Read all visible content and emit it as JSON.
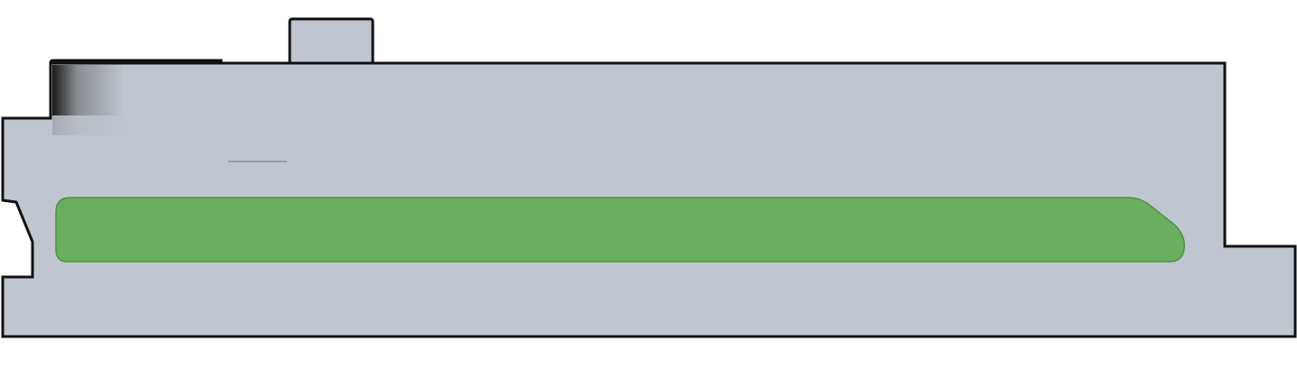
{
  "colors": {
    "background": "#ffffff",
    "body_fill": "#c0c6cf",
    "outline": "#111111",
    "channel_fill": "#6aae5f",
    "channel_stroke": "#4e9444",
    "shade_dark": "#1a1a1a",
    "shade_mid": "#8a8e94",
    "scribe_line": "#8c9098"
  }
}
